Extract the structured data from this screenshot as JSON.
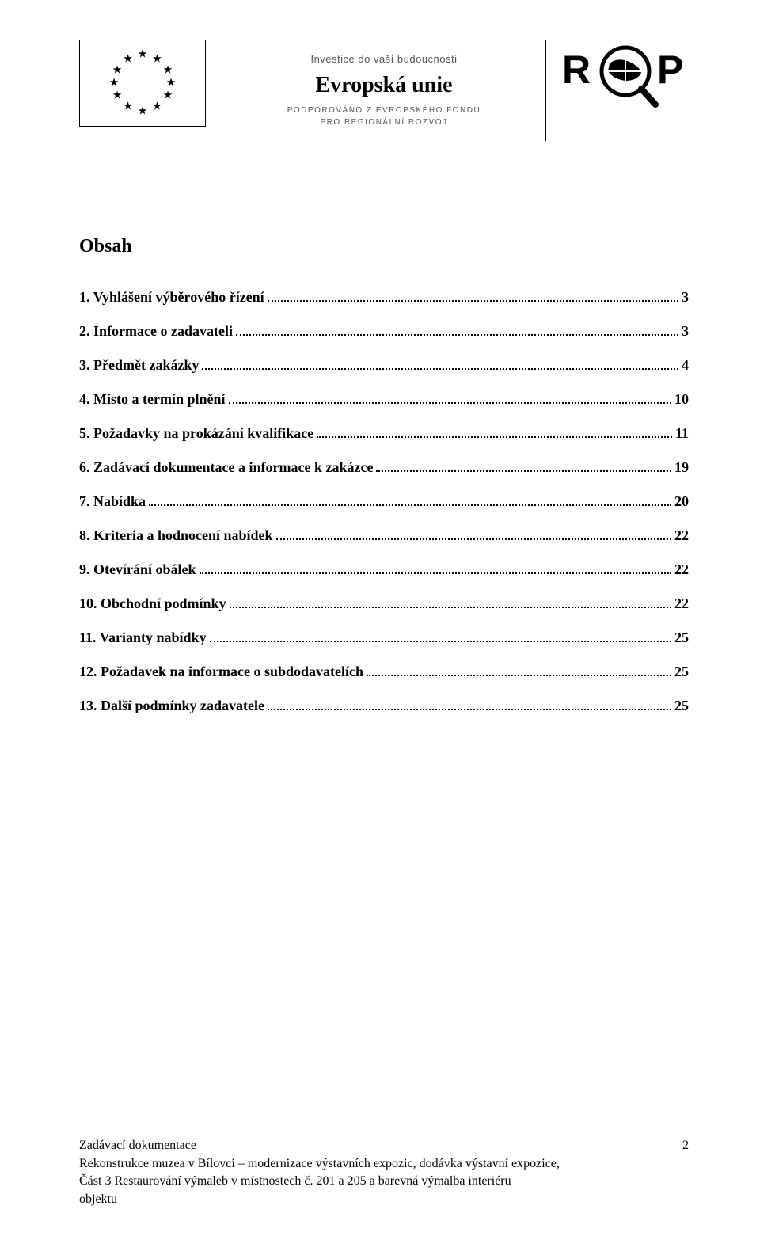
{
  "header": {
    "invest_line": "Investice do vaší budoucnosti",
    "eu_title": "Evropská unie",
    "sub_line_1": "PODPOROVÁNO Z EVROPSKÉHO FONDU",
    "sub_line_2": "PRO REGIONÁLNÍ ROZVOJ",
    "rop_text": "R   P"
  },
  "toc": {
    "title": "Obsah",
    "items": [
      {
        "label": "1. Vyhlášení výběrového řízení",
        "page": "3"
      },
      {
        "label": "2. Informace o zadavateli",
        "page": "3"
      },
      {
        "label": "3. Předmět zakázky",
        "page": "4"
      },
      {
        "label": "4. Místo a termín plnění",
        "page": "10"
      },
      {
        "label": "5. Požadavky na prokázání kvalifikace",
        "page": "11"
      },
      {
        "label": "6. Zadávací dokumentace a informace k zakázce",
        "page": "19"
      },
      {
        "label": "7. Nabídka",
        "page": "20"
      },
      {
        "label": "8. Kriteria a hodnocení nabídek",
        "page": "22"
      },
      {
        "label": "9. Otevírání obálek",
        "page": "22"
      },
      {
        "label": "10. Obchodní podmínky",
        "page": "22"
      },
      {
        "label": "11. Varianty nabídky",
        "page": "25"
      },
      {
        "label": "12. Požadavek na informace o subdodavatelích",
        "page": "25"
      },
      {
        "label": "13. Další podmínky zadavatele",
        "page": "25"
      }
    ]
  },
  "footer": {
    "line1": "Zadávací dokumentace",
    "line2": "Rekonstrukce muzea v Bílovci – modernizace výstavních expozic, dodávka výstavní expozice,",
    "line3": "Část 3 Restaurování výmaleb v místnostech č. 201 a 205 a barevná výmalba interiéru",
    "line4": "objektu",
    "page_number": "2"
  },
  "colors": {
    "text": "#000000",
    "background": "#ffffff",
    "muted": "#555555"
  }
}
